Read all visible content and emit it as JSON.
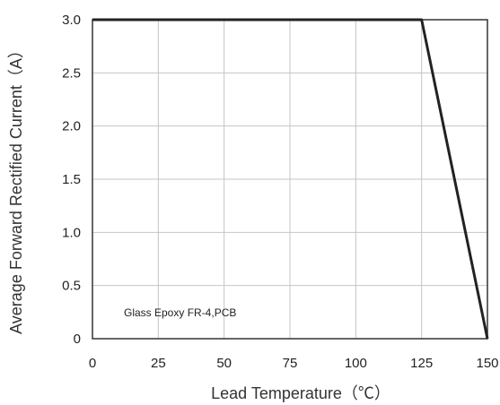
{
  "chart_data": {
    "type": "line",
    "title": "",
    "xlabel": "Lead Temperature（℃）",
    "ylabel": "Average Forward Rectified Current（A）",
    "x": [
      0,
      125,
      150
    ],
    "series": [
      {
        "values": [
          3.0,
          3.0,
          0
        ]
      }
    ],
    "xlim": [
      0,
      150
    ],
    "ylim": [
      0,
      3.0
    ],
    "xticks": [
      0,
      25,
      50,
      75,
      100,
      125,
      150
    ],
    "xtick_labels": [
      "0",
      "25",
      "50",
      "75",
      "100",
      "125",
      "150"
    ],
    "yticks": [
      0,
      0.5,
      1.0,
      1.5,
      2.0,
      2.5,
      3.0
    ],
    "ytick_labels": [
      "0",
      "0.5",
      "1.0",
      "1.5",
      "2.0",
      "2.5",
      "3.0"
    ],
    "grid": true,
    "annotation": "Glass Epoxy FR-4,PCB",
    "line_color": "#222222",
    "grid_color": "#c4c4c4"
  }
}
